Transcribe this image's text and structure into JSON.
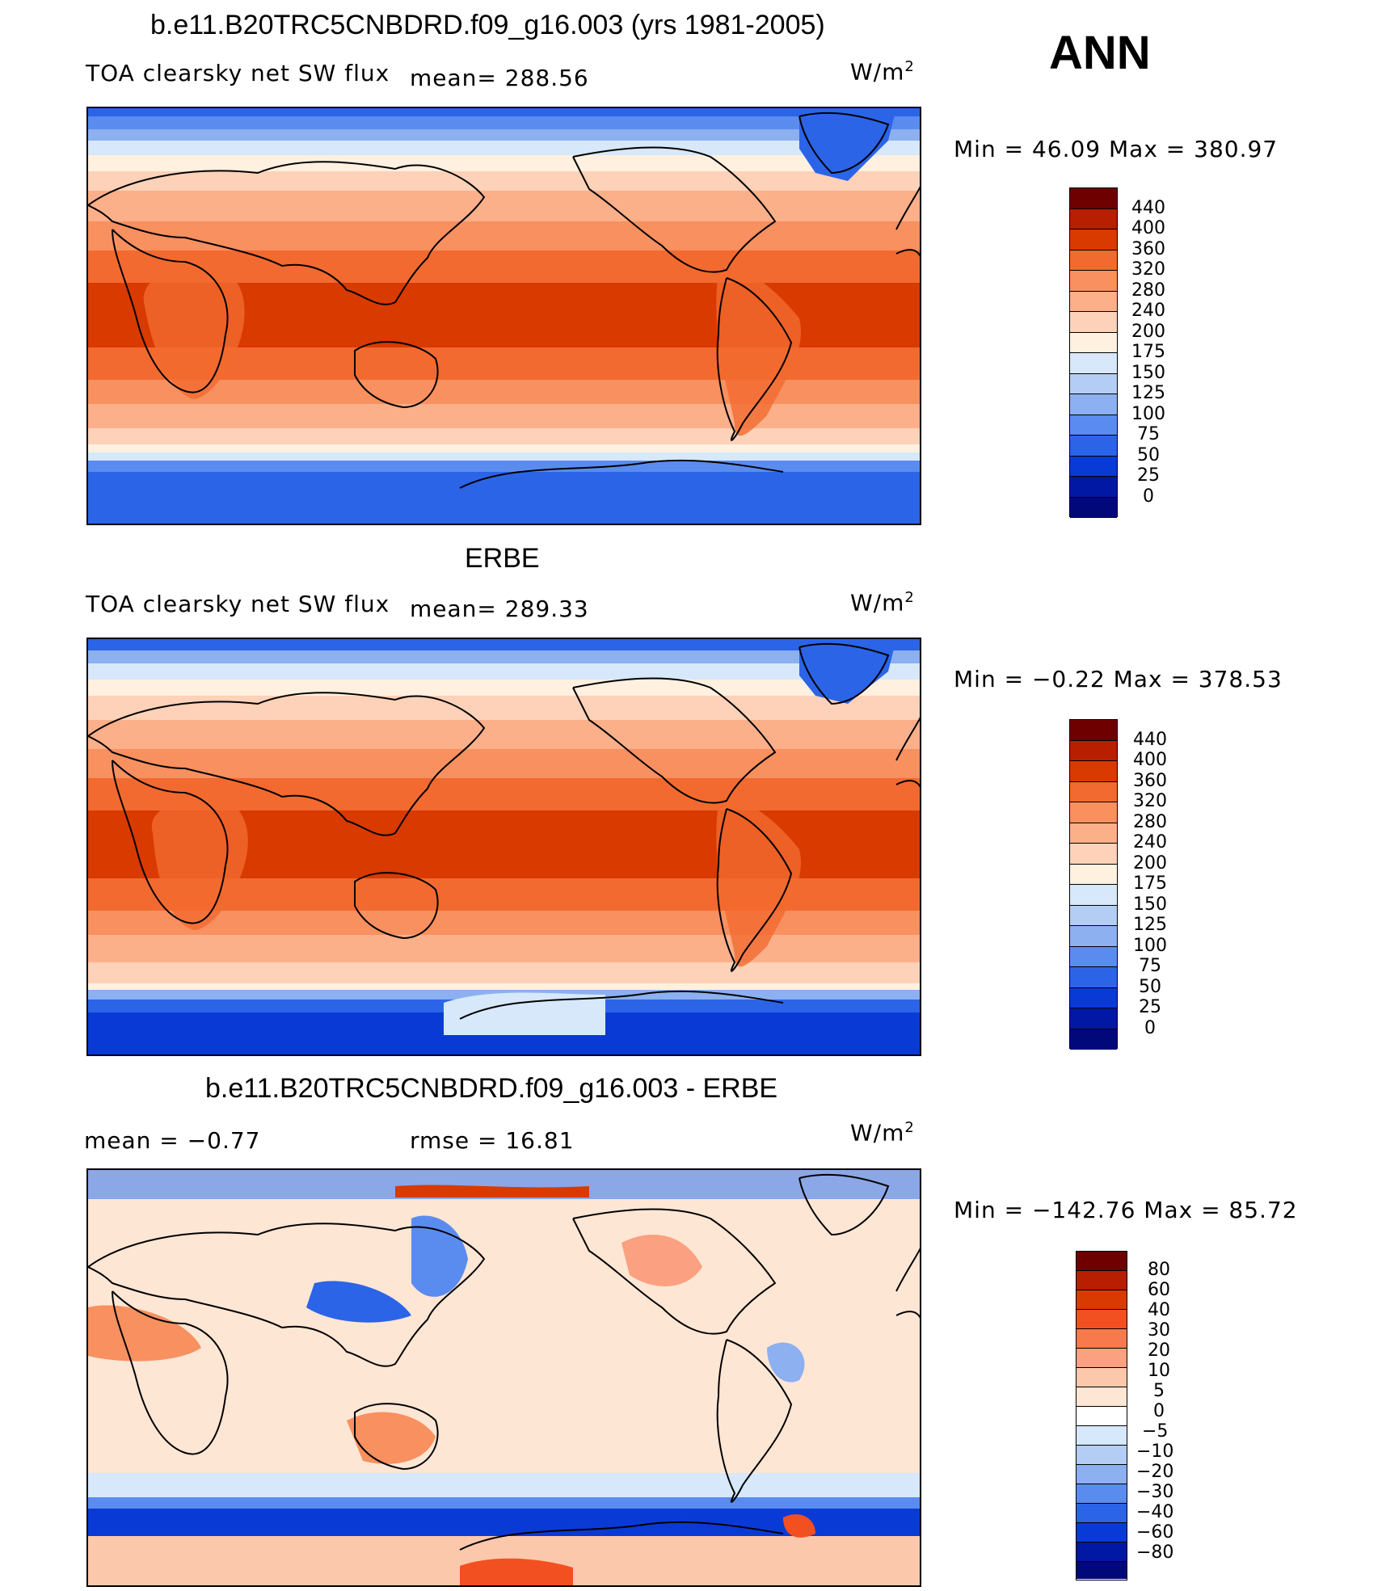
{
  "season": "ANN",
  "panels": [
    {
      "title": "b.e11.B20TRC5CNBDRD.f09_g16.003 (yrs 1981-2005)",
      "left_text": "TOA clearsky net SW flux",
      "mid_text": "mean=  288.56",
      "units": "W/m",
      "units_sup": "2",
      "stats_text": "Min =   46.09  Max  =  380.97",
      "colorbar_labels": [
        "440",
        "400",
        "360",
        "320",
        "280",
        "240",
        "200",
        "175",
        "150",
        "125",
        "100",
        "75",
        "50",
        "25",
        "0"
      ]
    },
    {
      "title": "ERBE",
      "left_text": "TOA clearsky net SW flux",
      "mid_text": "mean=  289.33",
      "units": "W/m",
      "units_sup": "2",
      "stats_text": "Min =   −0.22  Max  =  378.53",
      "colorbar_labels": [
        "440",
        "400",
        "360",
        "320",
        "280",
        "240",
        "200",
        "175",
        "150",
        "125",
        "100",
        "75",
        "50",
        "25",
        "0"
      ]
    },
    {
      "title": "b.e11.B20TRC5CNBDRD.f09_g16.003 - ERBE",
      "left_text": "mean  =    −0.77",
      "mid_text": "rmse  =    16.81",
      "units": "W/m",
      "units_sup": "2",
      "stats_text": "Min  =  −142.76  Max  =    85.72",
      "colorbar_labels": [
        "80",
        "60",
        "40",
        "30",
        "20",
        "10",
        "5",
        "0",
        "−5",
        "−10",
        "−20",
        "−30",
        "−40",
        "−60",
        "−80"
      ]
    }
  ],
  "colors": {
    "flux_scale": [
      "#6e0000",
      "#b81e00",
      "#d83a00",
      "#f26a30",
      "#f89060",
      "#fbb08a",
      "#fdd2b8",
      "#fff0e0",
      "#d6e8fa",
      "#b4cdf4",
      "#8cb0f0",
      "#5a8cf0",
      "#2c64e8",
      "#0a3ad6",
      "#0018a4",
      "#00087a"
    ],
    "diff_scale": [
      "#6e0000",
      "#b81e00",
      "#d83a00",
      "#f25020",
      "#f87a4c",
      "#fba080",
      "#fcc8ac",
      "#fee6d4",
      "#ffffff",
      "#d6e8fa",
      "#b4cdf4",
      "#8cb0f0",
      "#5a8cf0",
      "#2c64e8",
      "#0a3ad6",
      "#0018a4",
      "#00087a"
    ]
  }
}
